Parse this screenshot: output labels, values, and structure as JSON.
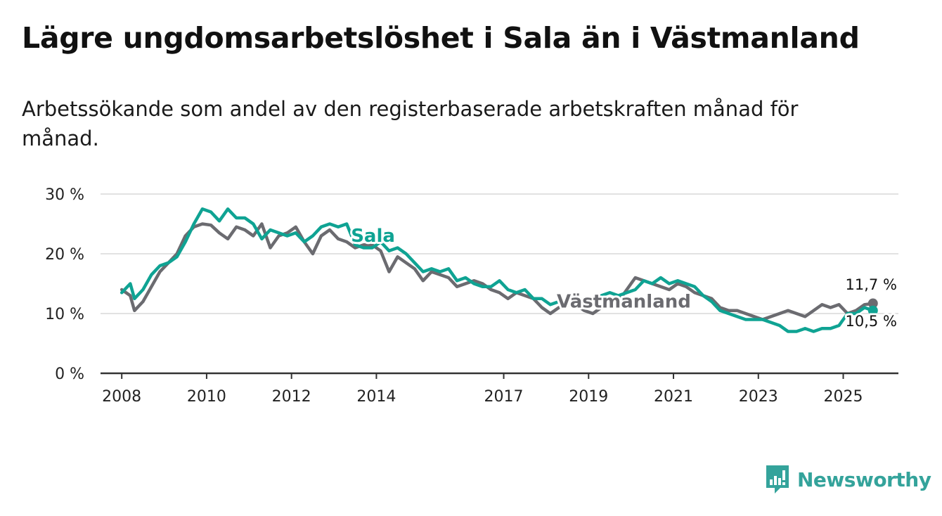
{
  "title": "Lägre ungdomsarbetslöshet i Sala än i Västmanland",
  "subtitle": "Arbetssökande som andel av den registerbaserade arbetskraften månad för månad.",
  "brand": {
    "name": "Newsworthy"
  },
  "colors": {
    "sala": "#0fa393",
    "vastmanland": "#6b6b70",
    "grid": "#d9d9d9",
    "axis": "#333333",
    "brand": "#34a39b"
  },
  "chart_data": {
    "type": "line",
    "title": "Lägre ungdomsarbetslöshet i Sala än i Västmanland",
    "xlabel": "",
    "ylabel": "",
    "xlim": [
      2007.5,
      2026.3
    ],
    "ylim": [
      0,
      30
    ],
    "grid": true,
    "y_ticks": [
      {
        "value": 0,
        "label": "0 %"
      },
      {
        "value": 10,
        "label": "10 %"
      },
      {
        "value": 20,
        "label": "20 %"
      },
      {
        "value": 30,
        "label": "30 %"
      }
    ],
    "x_ticks": [
      {
        "value": 2008,
        "label": "2008"
      },
      {
        "value": 2010,
        "label": "2010"
      },
      {
        "value": 2012,
        "label": "2012"
      },
      {
        "value": 2014,
        "label": "2014"
      },
      {
        "value": 2017,
        "label": "2017"
      },
      {
        "value": 2019,
        "label": "2019"
      },
      {
        "value": 2021,
        "label": "2021"
      },
      {
        "value": 2023,
        "label": "2023"
      },
      {
        "value": 2025,
        "label": "2025"
      }
    ],
    "series": [
      {
        "name": "Västmanland",
        "label": "Västmanland",
        "end_label": "11,7 %",
        "end_value": 11.7,
        "x": [
          2008.0,
          2008.2,
          2008.3,
          2008.5,
          2008.7,
          2008.9,
          2009.1,
          2009.3,
          2009.5,
          2009.7,
          2009.9,
          2010.1,
          2010.3,
          2010.5,
          2010.7,
          2010.9,
          2011.1,
          2011.3,
          2011.5,
          2011.7,
          2011.9,
          2012.1,
          2012.3,
          2012.5,
          2012.7,
          2012.9,
          2013.1,
          2013.3,
          2013.5,
          2013.7,
          2013.9,
          2014.1,
          2014.3,
          2014.5,
          2014.7,
          2014.9,
          2015.1,
          2015.3,
          2015.5,
          2015.7,
          2015.9,
          2016.1,
          2016.3,
          2016.5,
          2016.7,
          2016.9,
          2017.1,
          2017.3,
          2017.5,
          2017.7,
          2017.9,
          2018.1,
          2018.3,
          2018.5,
          2018.7,
          2018.9,
          2019.1,
          2019.3,
          2019.5,
          2019.7,
          2019.9,
          2020.1,
          2020.3,
          2020.5,
          2020.7,
          2020.9,
          2021.1,
          2021.3,
          2021.5,
          2021.7,
          2021.9,
          2022.1,
          2022.3,
          2022.5,
          2022.7,
          2022.9,
          2023.1,
          2023.3,
          2023.5,
          2023.7,
          2023.9,
          2024.1,
          2024.3,
          2024.5,
          2024.7,
          2024.9,
          2025.1,
          2025.3,
          2025.5,
          2025.7
        ],
        "values": [
          14.0,
          13.0,
          10.5,
          12.0,
          14.5,
          17.0,
          18.5,
          20.0,
          23.0,
          24.5,
          25.0,
          24.8,
          23.5,
          22.5,
          24.5,
          24.0,
          23.0,
          25.0,
          21.0,
          23.0,
          23.5,
          24.5,
          22.0,
          20.0,
          23.0,
          24.0,
          22.5,
          22.0,
          21.0,
          21.5,
          21.5,
          20.5,
          17.0,
          19.5,
          18.5,
          17.5,
          15.5,
          17.0,
          16.5,
          16.0,
          14.5,
          15.0,
          15.5,
          15.0,
          14.0,
          13.5,
          12.5,
          13.5,
          13.0,
          12.5,
          11.0,
          10.0,
          11.0,
          11.5,
          11.5,
          10.5,
          10.0,
          11.0,
          11.5,
          12.0,
          14.0,
          16.0,
          15.5,
          15.0,
          14.5,
          14.0,
          15.0,
          14.5,
          13.5,
          13.0,
          12.5,
          11.0,
          10.5,
          10.5,
          10.0,
          9.5,
          9.0,
          9.5,
          10.0,
          10.5,
          10.0,
          9.5,
          10.5,
          11.5,
          11.0,
          11.5,
          10.0,
          10.5,
          11.5,
          11.7
        ]
      },
      {
        "name": "Sala",
        "label": "Sala",
        "end_label": "10,5 %",
        "end_value": 10.5,
        "x": [
          2008.0,
          2008.2,
          2008.3,
          2008.5,
          2008.7,
          2008.9,
          2009.1,
          2009.3,
          2009.5,
          2009.7,
          2009.9,
          2010.1,
          2010.3,
          2010.5,
          2010.7,
          2010.9,
          2011.1,
          2011.3,
          2011.5,
          2011.7,
          2011.9,
          2012.1,
          2012.3,
          2012.5,
          2012.7,
          2012.9,
          2013.1,
          2013.3,
          2013.5,
          2013.7,
          2013.9,
          2014.1,
          2014.3,
          2014.5,
          2014.7,
          2014.9,
          2015.1,
          2015.3,
          2015.5,
          2015.7,
          2015.9,
          2016.1,
          2016.3,
          2016.5,
          2016.7,
          2016.9,
          2017.1,
          2017.3,
          2017.5,
          2017.7,
          2017.9,
          2018.1,
          2018.3,
          2018.5,
          2018.7,
          2018.9,
          2019.1,
          2019.3,
          2019.5,
          2019.7,
          2019.9,
          2020.1,
          2020.3,
          2020.5,
          2020.7,
          2020.9,
          2021.1,
          2021.3,
          2021.5,
          2021.7,
          2021.9,
          2022.1,
          2022.3,
          2022.5,
          2022.7,
          2022.9,
          2023.1,
          2023.3,
          2023.5,
          2023.7,
          2023.9,
          2024.1,
          2024.3,
          2024.5,
          2024.7,
          2024.9,
          2025.1,
          2025.3,
          2025.5,
          2025.7
        ],
        "values": [
          13.5,
          15.0,
          12.5,
          14.0,
          16.5,
          18.0,
          18.5,
          19.5,
          22.0,
          25.0,
          27.5,
          27.0,
          25.5,
          27.5,
          26.0,
          26.0,
          25.0,
          22.5,
          24.0,
          23.5,
          23.0,
          23.5,
          22.0,
          23.0,
          24.5,
          25.0,
          24.5,
          25.0,
          21.5,
          21.0,
          21.0,
          22.0,
          20.5,
          21.0,
          20.0,
          18.5,
          17.0,
          17.5,
          17.0,
          17.5,
          15.5,
          16.0,
          15.0,
          14.5,
          14.5,
          15.5,
          14.0,
          13.5,
          14.0,
          12.5,
          12.5,
          11.5,
          12.0,
          12.5,
          12.0,
          12.5,
          12.0,
          13.0,
          13.5,
          13.0,
          13.5,
          14.0,
          15.5,
          15.0,
          16.0,
          15.0,
          15.5,
          15.0,
          14.5,
          13.0,
          12.0,
          10.5,
          10.0,
          9.5,
          9.0,
          9.0,
          9.0,
          8.5,
          8.0,
          7.0,
          7.0,
          7.5,
          7.0,
          7.5,
          7.5,
          8.0,
          10.0,
          10.0,
          11.0,
          10.5
        ]
      }
    ]
  }
}
